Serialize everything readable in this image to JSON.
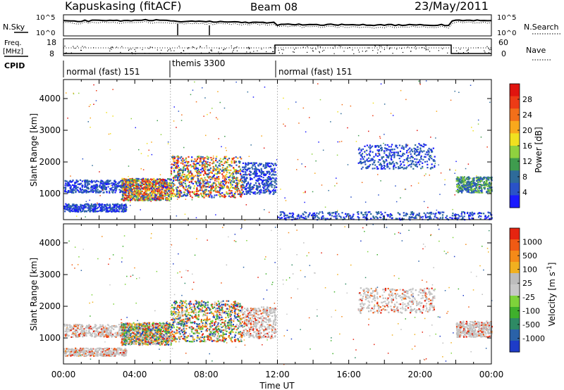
{
  "header": {
    "station": "Kapuskasing (fitACF)",
    "beam": "Beam 08",
    "date": "23/May/2011"
  },
  "strip_panels": {
    "nsky_label": "N.Sky",
    "nsky_ticks": [
      "10^5",
      "10^0"
    ],
    "nsearch_label": "N.Search",
    "nsearch_ticks": [
      "10^5",
      "10^0"
    ],
    "freq_label_top": "Freq.",
    "freq_label_unit": "[MHz]",
    "freq_ticks": [
      "18",
      "8"
    ],
    "nave_label": "Nave",
    "nave_ticks": [
      "60",
      "0"
    ],
    "cpid_label": "CPID"
  },
  "cpid_segments": [
    {
      "label": "normal (fast) 151",
      "start_ut": 0.0,
      "end_ut": 6.0
    },
    {
      "label": "themis 3300",
      "start_ut": 6.0,
      "end_ut": 12.0
    },
    {
      "label": "normal (fast) 151",
      "start_ut": 12.0,
      "end_ut": 24.0
    }
  ],
  "chart_data": [
    {
      "type": "heatmap",
      "quantity": "power",
      "ylabel": "Slant Range [km]",
      "xlabel": "Time UT",
      "x_range_ut": [
        0,
        24
      ],
      "ylim": [
        180,
        4600
      ],
      "y_ticks": [
        "1000",
        "2000",
        "3000",
        "4000"
      ],
      "x_ticks": [
        "00:00",
        "04:00",
        "08:00",
        "12:00",
        "16:00",
        "20:00",
        "00:00"
      ],
      "colorbar": {
        "label": "Power [dB]",
        "ticks": [
          "4",
          "8",
          "12",
          "16",
          "20",
          "24",
          "28"
        ],
        "colors": [
          "#1a1aff",
          "#2a52c8",
          "#2e6b9a",
          "#3f9c4e",
          "#8fd13f",
          "#f0e020",
          "#f9a81c",
          "#f26f1a",
          "#ed3b16",
          "#e0140f"
        ]
      },
      "echo_regions": [
        {
          "ut": [
            0.0,
            3.5
          ],
          "range_km": [
            1050,
            1450
          ],
          "level": "low"
        },
        {
          "ut": [
            0.0,
            3.5
          ],
          "range_km": [
            450,
            700
          ],
          "level": "low"
        },
        {
          "ut": [
            3.2,
            6.0
          ],
          "range_km": [
            800,
            1500
          ],
          "level": "high"
        },
        {
          "ut": [
            6.0,
            10.0
          ],
          "range_km": [
            900,
            2200
          ],
          "level": "high"
        },
        {
          "ut": [
            10.0,
            11.9
          ],
          "range_km": [
            1000,
            2000
          ],
          "level": "low"
        },
        {
          "ut": [
            12.0,
            24.0
          ],
          "range_km": [
            200,
            450
          ],
          "level": "low"
        },
        {
          "ut": [
            16.5,
            20.8
          ],
          "range_km": [
            1800,
            2600
          ],
          "level": "low"
        },
        {
          "ut": [
            22.0,
            24.0
          ],
          "range_km": [
            1050,
            1550
          ],
          "level": "mid"
        }
      ]
    },
    {
      "type": "heatmap",
      "quantity": "velocity",
      "ylabel": "Slant Range [km]",
      "xlabel": "Time UT",
      "x_range_ut": [
        0,
        24
      ],
      "ylim": [
        180,
        4600
      ],
      "y_ticks": [
        "1000",
        "2000",
        "3000",
        "4000"
      ],
      "x_ticks": [
        "00:00",
        "04:00",
        "08:00",
        "12:00",
        "16:00",
        "20:00",
        "00:00"
      ],
      "colorbar": {
        "label": "Velocity [m s^-1]",
        "ticks": [
          "1000",
          "500",
          "100",
          "25",
          "-25",
          "-100",
          "-500",
          "-1000"
        ],
        "colors": [
          "#1e3cc8",
          "#2a62a8",
          "#2e8a64",
          "#3fb02c",
          "#7ed33a",
          "#c8c8c8",
          "#bcbcbc",
          "#f0b020",
          "#f58a18",
          "#ef5a14",
          "#e52410"
        ]
      },
      "echo_regions": [
        {
          "ut": [
            0.0,
            3.5
          ],
          "range_km": [
            1050,
            1450
          ],
          "level": "ground"
        },
        {
          "ut": [
            0.0,
            3.5
          ],
          "range_km": [
            450,
            700
          ],
          "level": "ground"
        },
        {
          "ut": [
            3.2,
            6.0
          ],
          "range_km": [
            800,
            1500
          ],
          "level": "mixed"
        },
        {
          "ut": [
            6.0,
            10.0
          ],
          "range_km": [
            900,
            2200
          ],
          "level": "mixed"
        },
        {
          "ut": [
            10.0,
            11.9
          ],
          "range_km": [
            1000,
            2000
          ],
          "level": "ground"
        },
        {
          "ut": [
            16.5,
            20.8
          ],
          "range_km": [
            1800,
            2600
          ],
          "level": "ground"
        },
        {
          "ut": [
            22.0,
            24.0
          ],
          "range_km": [
            1050,
            1550
          ],
          "level": "ground"
        }
      ]
    }
  ]
}
